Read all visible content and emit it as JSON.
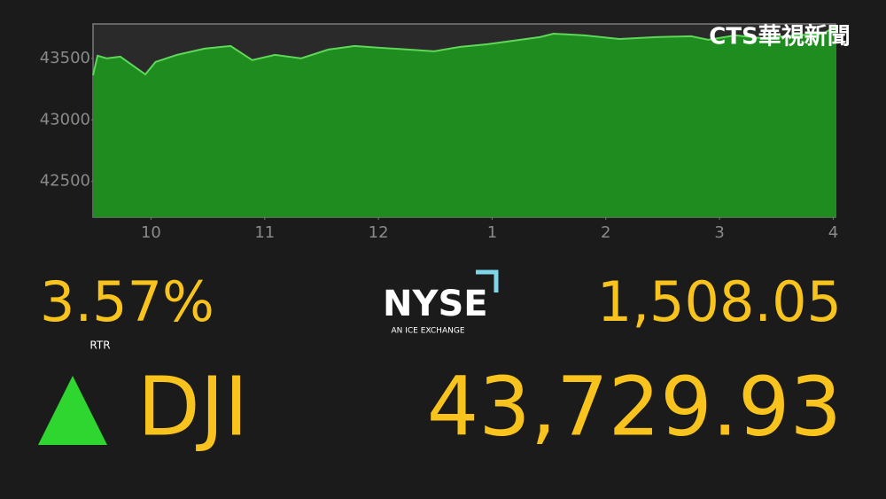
{
  "chart_data": {
    "type": "area",
    "x": [
      9.49,
      9.53,
      9.61,
      9.73,
      9.84,
      9.95,
      10.04,
      10.23,
      10.47,
      10.7,
      10.89,
      11.09,
      11.32,
      11.56,
      11.79,
      12.02,
      12.26,
      12.49,
      12.72,
      12.96,
      13.19,
      13.42,
      13.54,
      13.81,
      14.12,
      14.44,
      14.75,
      14.9,
      15.14,
      15.37,
      15.68,
      15.91,
      16.02
    ],
    "values": [
      43363,
      43522,
      43500,
      43514,
      43442,
      43370,
      43471,
      43529,
      43579,
      43601,
      43486,
      43529,
      43500,
      43572,
      43601,
      43586,
      43572,
      43558,
      43594,
      43615,
      43644,
      43673,
      43701,
      43687,
      43658,
      43673,
      43680,
      43651,
      43687,
      43665,
      43687,
      43701,
      43759
    ],
    "color": "#1f8c1f",
    "line_color": "#5fd85a",
    "xlim": [
      9.49,
      16.02
    ],
    "ylim": [
      42210,
      43780
    ],
    "xticks": [
      10,
      11,
      12,
      {
        "value": 13,
        "label": "1"
      },
      {
        "value": 14,
        "label": "2"
      },
      {
        "value": 15,
        "label": "3"
      },
      {
        "value": 16,
        "label": "4"
      }
    ],
    "yticks": [
      42500,
      43000,
      43500
    ],
    "grid": false
  },
  "ticker": {
    "change": "3.57%",
    "source": "RTR",
    "exchange": "NYSE",
    "exchange_sub": "AN ICE EXCHANGE",
    "points": "1,508.05",
    "symbol": "DJI",
    "price": "43,729.93"
  },
  "logo": "CTS華視新聞"
}
